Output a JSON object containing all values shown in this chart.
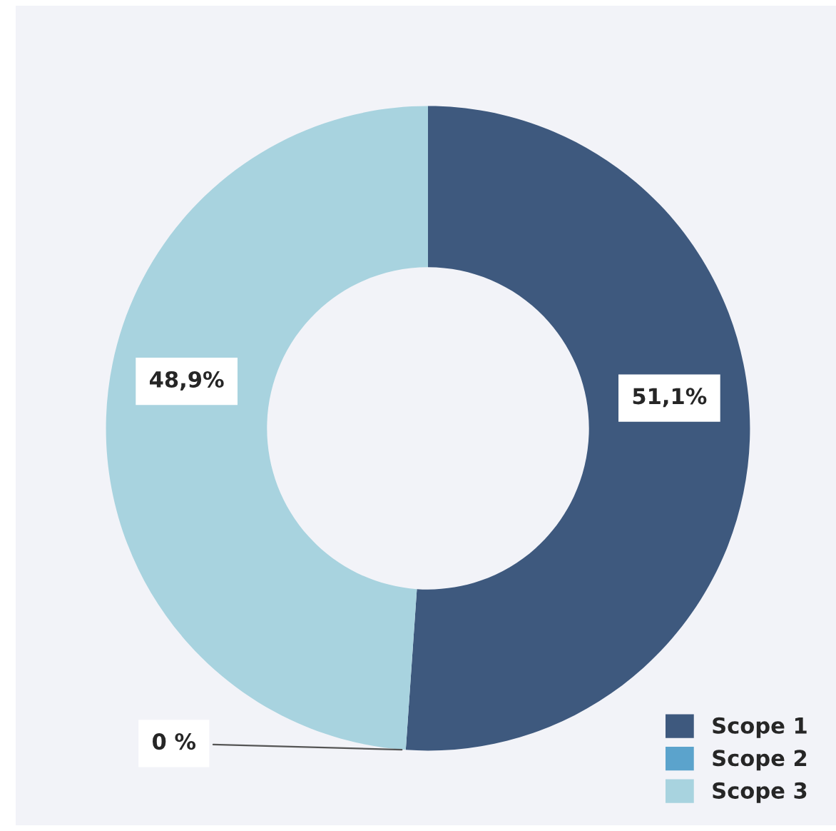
{
  "chart_data": {
    "type": "donut",
    "categories": [
      "Scope 1",
      "Scope 2",
      "Scope 3"
    ],
    "values": [
      51.1,
      0,
      48.9
    ],
    "value_labels": [
      "51,1%",
      "0 %",
      "48,9%"
    ],
    "colors": [
      "#3e597e",
      "#5ba3cc",
      "#a8d3df"
    ],
    "legend": "bottom right"
  }
}
